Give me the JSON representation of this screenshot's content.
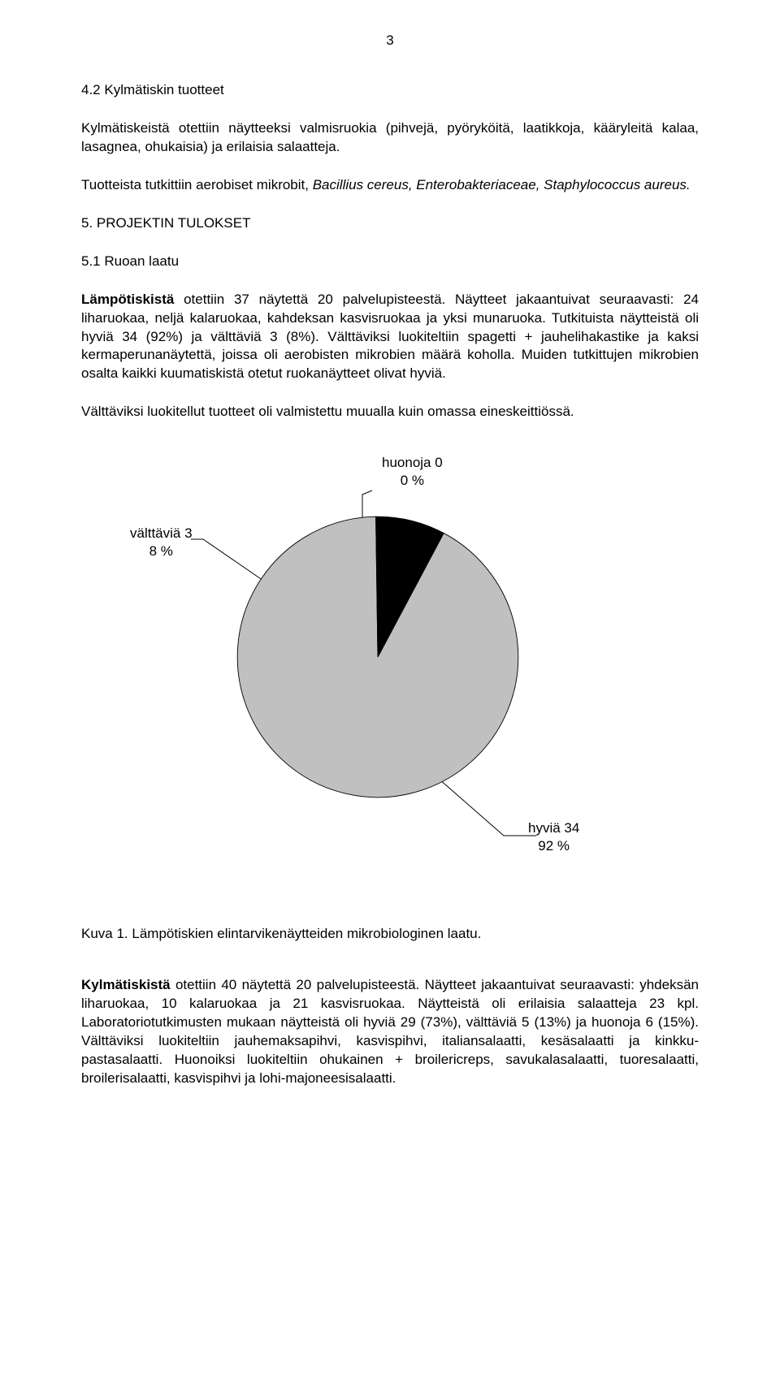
{
  "page_number": "3",
  "section_42": {
    "heading": "4.2 Kylmätiskin tuotteet",
    "para1_plain": "Kylmätiskeistä otettiin näytteeksi valmisruokia (pihvejä, pyöryköitä, laatikkoja, kääryleitä kalaa, lasagnea, ohukaisia) ja erilaisia salaatteja.",
    "para2_plain": "Tuotteista tutkittiin aerobiset mikrobit, ",
    "para2_italic": "Bacillius cereus, Enterobakteriaceae, Staphylococcus aureus.",
    "heading_5": "5. PROJEKTIN TULOKSET",
    "heading_51": "5.1 Ruoan laatu",
    "para3_bold": "Lämpötiskistä",
    "para3_rest": " otettiin 37 näytettä 20 palvelupisteestä. Näytteet jakaantuivat seuraavasti: 24 liharuokaa, neljä kalaruokaa, kahdeksan kasvisruokaa ja yksi munaruoka. Tutkituista näytteistä oli hyviä 34 (92%) ja välttäviä 3 (8%). Välttäviksi luokiteltiin spagetti + jauhelihakastike ja kaksi kermaperunanäytettä, joissa oli aerobisten mikrobien määrä koholla. Muiden tutkittujen mikrobien osalta kaikki kuumatiskistä otetut ruokanäytteet olivat hyviä.",
    "para4": "Välttäviksi luokitellut tuotteet oli valmistettu muualla kuin omassa eineskeittiössä."
  },
  "pie": {
    "type": "pie",
    "background_color": "#ffffff",
    "slices": [
      {
        "label": "hyviä 34\n92 %",
        "value": 92,
        "color": "#c0c0c0"
      },
      {
        "label": "välttäviä 3\n8 %",
        "value": 8,
        "color": "#000000"
      },
      {
        "label": "huonoja 0\n0 %",
        "value": 0,
        "color": "#ffffff"
      }
    ],
    "stroke_color": "#000000",
    "stroke_width": 1,
    "label_fontsize": 17,
    "start_angle_deg": -62
  },
  "caption": "Kuva 1. Lämpötiskien elintarvikenäytteiden mikrobiologinen laatu.",
  "section_last": {
    "bold": "Kylmätiskistä",
    "rest": " otettiin 40 näytettä 20 palvelupisteestä. Näytteet jakaantuivat seuraavasti: yhdeksän liharuokaa, 10 kalaruokaa ja 21 kasvisruokaa. Näytteistä oli erilaisia salaatteja 23 kpl. Laboratoriotutkimusten mukaan näytteistä oli hyviä 29 (73%), välttäviä 5 (13%) ja huonoja 6 (15%). Välttäviksi luokiteltiin jauhemaksapihvi, kasvispihvi, italiansalaatti, kesäsalaatti ja kinkku-pastasalaatti. Huonoiksi luokiteltiin ohukainen + broilericreps, savukalasalaatti, tuoresalaatti, broilerisalaatti, kasvispihvi ja lohi-majoneesisalaatti."
  }
}
